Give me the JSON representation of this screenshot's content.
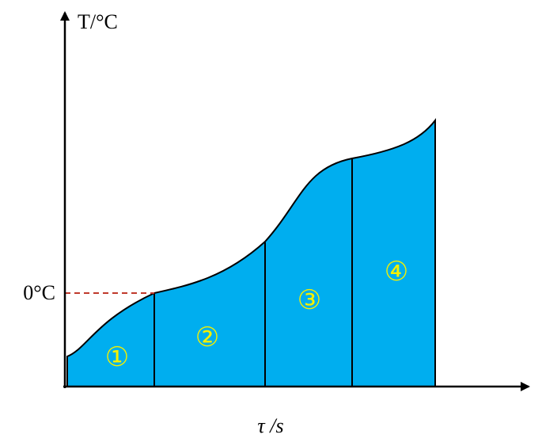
{
  "diagram": {
    "y_axis_label": "T/°C",
    "x_axis_label": "τ /s",
    "reference_label": "0°C",
    "regions": [
      "①",
      "②",
      "③",
      "④"
    ],
    "colors": {
      "fill": "#00AEEF",
      "outline": "#000000",
      "region_text": "#F5F000",
      "reference_line": "#C0392B"
    }
  }
}
